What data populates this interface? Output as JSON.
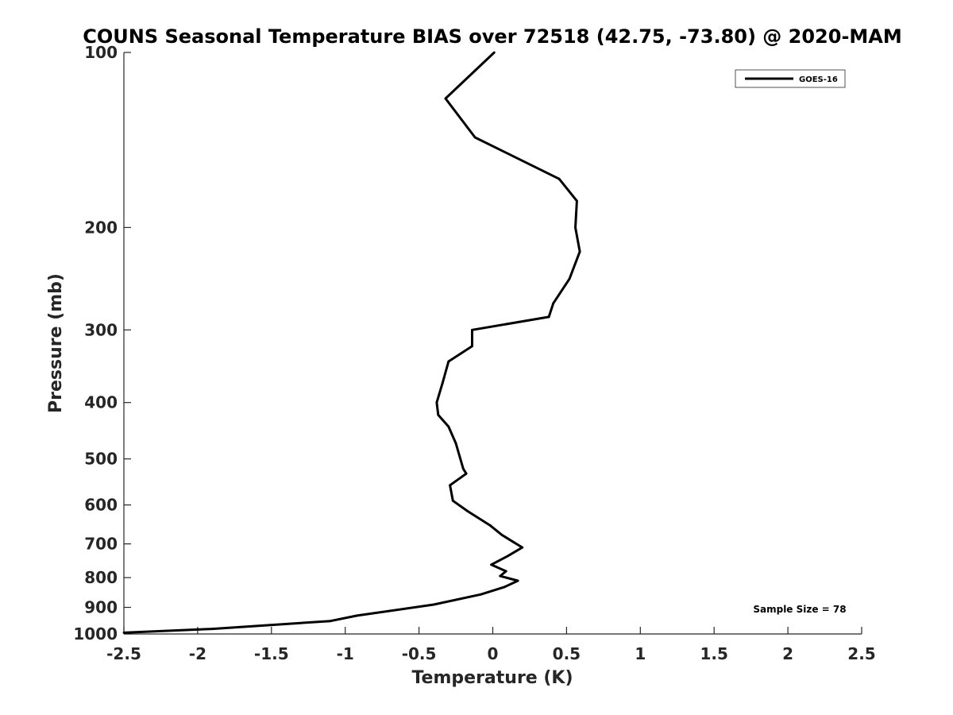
{
  "chart_data": {
    "type": "line",
    "title": "COUNS Seasonal Temperature BIAS over 72518 (42.75, -73.80) @ 2020-MAM",
    "xlabel": "Temperature (K)",
    "ylabel": "Pressure (mb)",
    "xlim": [
      -2.5,
      2.5
    ],
    "ylim": [
      100,
      1000
    ],
    "yscale": "log",
    "y_reversed": true,
    "x_ticks": [
      -2.5,
      -2,
      -1.5,
      -1,
      -0.5,
      0,
      0.5,
      1,
      1.5,
      2,
      2.5
    ],
    "x_tick_labels": [
      "-2.5",
      "-2",
      "-1.5",
      "-1",
      "-0.5",
      "0",
      "0.5",
      "1",
      "1.5",
      "2",
      "2.5"
    ],
    "y_ticks": [
      100,
      200,
      300,
      400,
      500,
      600,
      700,
      800,
      900,
      1000
    ],
    "y_tick_labels": [
      "100",
      "200",
      "300",
      "400",
      "500",
      "600",
      "700",
      "800",
      "900",
      "1000"
    ],
    "legend_position": "top-right",
    "series": [
      {
        "name": "GOES-16",
        "color": "#000000",
        "points": [
          {
            "x": 0.01,
            "y": 100
          },
          {
            "x": -0.32,
            "y": 120
          },
          {
            "x": -0.12,
            "y": 140
          },
          {
            "x": 0.45,
            "y": 165
          },
          {
            "x": 0.57,
            "y": 180
          },
          {
            "x": 0.56,
            "y": 200
          },
          {
            "x": 0.59,
            "y": 220
          },
          {
            "x": 0.52,
            "y": 245
          },
          {
            "x": 0.41,
            "y": 270
          },
          {
            "x": 0.38,
            "y": 285
          },
          {
            "x": -0.14,
            "y": 300
          },
          {
            "x": -0.14,
            "y": 320
          },
          {
            "x": -0.3,
            "y": 340
          },
          {
            "x": -0.34,
            "y": 370
          },
          {
            "x": -0.38,
            "y": 400
          },
          {
            "x": -0.37,
            "y": 420
          },
          {
            "x": -0.3,
            "y": 440
          },
          {
            "x": -0.25,
            "y": 470
          },
          {
            "x": -0.2,
            "y": 520
          },
          {
            "x": -0.18,
            "y": 530
          },
          {
            "x": -0.29,
            "y": 555
          },
          {
            "x": -0.27,
            "y": 590
          },
          {
            "x": -0.17,
            "y": 615
          },
          {
            "x": -0.02,
            "y": 650
          },
          {
            "x": 0.06,
            "y": 675
          },
          {
            "x": 0.14,
            "y": 695
          },
          {
            "x": 0.2,
            "y": 710
          },
          {
            "x": 0.1,
            "y": 735
          },
          {
            "x": -0.01,
            "y": 760
          },
          {
            "x": 0.09,
            "y": 780
          },
          {
            "x": 0.05,
            "y": 795
          },
          {
            "x": 0.17,
            "y": 810
          },
          {
            "x": 0.08,
            "y": 830
          },
          {
            "x": -0.08,
            "y": 855
          },
          {
            "x": -0.4,
            "y": 890
          },
          {
            "x": -0.92,
            "y": 930
          },
          {
            "x": -1.1,
            "y": 950
          },
          {
            "x": -1.9,
            "y": 980
          },
          {
            "x": -2.5,
            "y": 995
          }
        ]
      }
    ],
    "annotation": "Sample Size = 78"
  }
}
